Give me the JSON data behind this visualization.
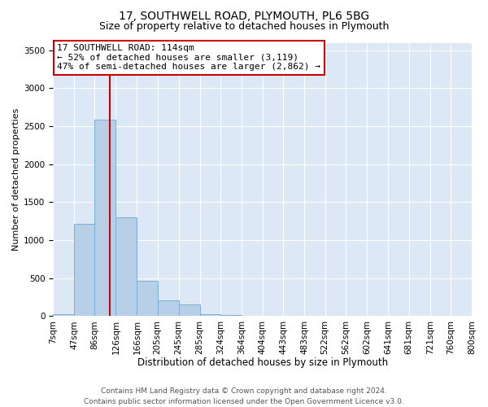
{
  "title1": "17, SOUTHWELL ROAD, PLYMOUTH, PL6 5BG",
  "title2": "Size of property relative to detached houses in Plymouth",
  "xlabel": "Distribution of detached houses by size in Plymouth",
  "ylabel": "Number of detached properties",
  "bar_color": "#b8cfe8",
  "bar_edge_color": "#7aaed6",
  "bg_color": "#dce8f5",
  "grid_color": "#ffffff",
  "annotation_box_color": "#cc0000",
  "annotation_line1": "17 SOUTHWELL ROAD: 114sqm",
  "annotation_line2": "← 52% of detached houses are smaller (3,119)",
  "annotation_line3": "47% of semi-detached houses are larger (2,862) →",
  "red_line_x": 114,
  "bin_edges": [
    7,
    47,
    86,
    126,
    166,
    205,
    245,
    285,
    324,
    364,
    404,
    443,
    483,
    522,
    562,
    602,
    641,
    681,
    721,
    760,
    800
  ],
  "bin_counts": [
    30,
    1210,
    2590,
    1300,
    465,
    205,
    155,
    30,
    10,
    5,
    3,
    2,
    2,
    0,
    0,
    0,
    0,
    0,
    0,
    0
  ],
  "ylim": [
    0,
    3600
  ],
  "yticks": [
    0,
    500,
    1000,
    1500,
    2000,
    2500,
    3000,
    3500
  ],
  "footer_line1": "Contains HM Land Registry data © Crown copyright and database right 2024.",
  "footer_line2": "Contains public sector information licensed under the Open Government Licence v3.0.",
  "title1_fontsize": 10,
  "title2_fontsize": 9,
  "xlabel_fontsize": 8.5,
  "ylabel_fontsize": 8,
  "tick_fontsize": 7.5,
  "annotation_fontsize": 8,
  "footer_fontsize": 6.5
}
